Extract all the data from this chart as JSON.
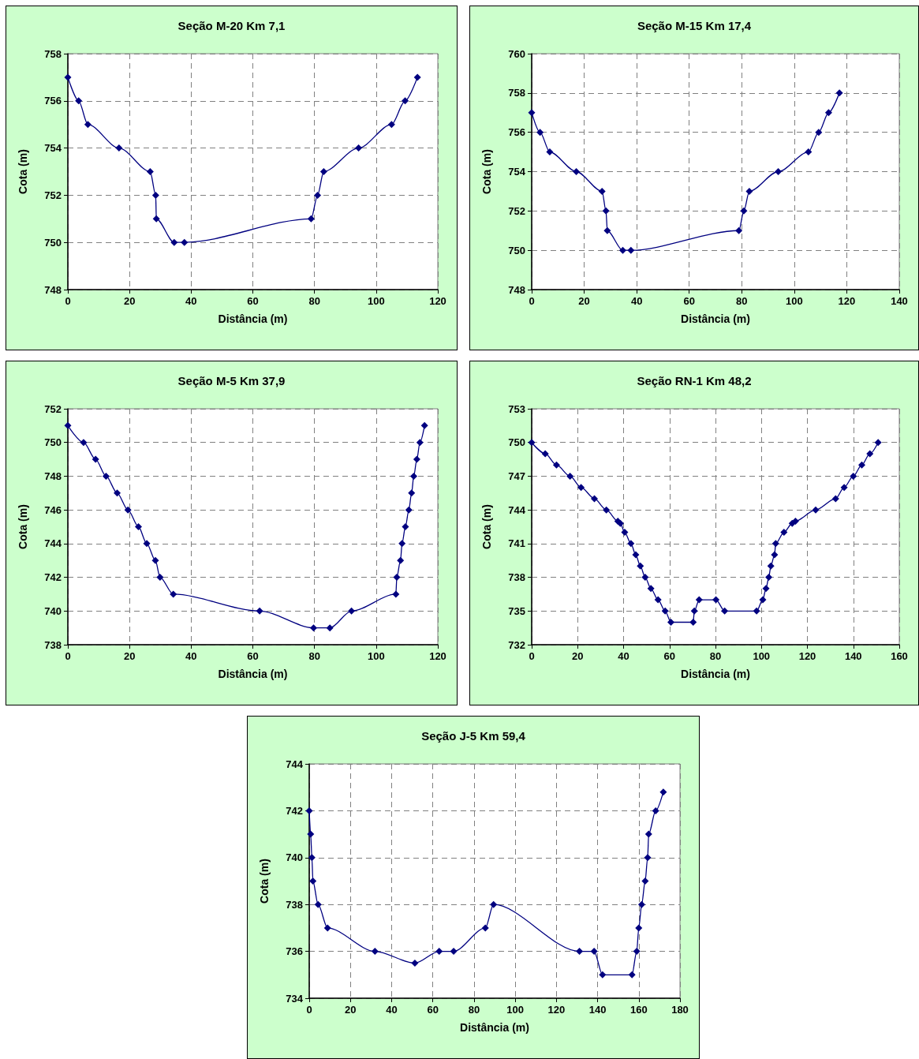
{
  "chart_data": [
    {
      "type": "line",
      "title": "Seção M-20 Km 7,1",
      "xlabel": "Distância (m)",
      "ylabel": "Cota (m)",
      "xlim": [
        0,
        120
      ],
      "xticks": [
        0,
        20,
        40,
        60,
        80,
        100,
        120
      ],
      "ylim": [
        748,
        758
      ],
      "yticks": [
        748,
        750,
        752,
        754,
        756,
        758
      ],
      "grid": true,
      "marker": "diamond",
      "line_style": "solid",
      "series": [
        {
          "color": "#000080",
          "x": [
            0,
            3.5,
            6.5,
            16.6,
            26.7,
            28.5,
            28.7,
            34.5,
            37.8,
            78.9,
            81,
            83,
            94.3,
            105,
            109.4,
            113.4
          ],
          "values": [
            757,
            756,
            755,
            754,
            753,
            752,
            751,
            750,
            750,
            751,
            752,
            753,
            754,
            755,
            756,
            757
          ]
        }
      ]
    },
    {
      "type": "line",
      "title": "Seção M-15 Km 17,4",
      "xlabel": "Distância (m)",
      "ylabel": "Cota (m)",
      "xlim": [
        0,
        140
      ],
      "xticks": [
        0,
        20,
        40,
        60,
        80,
        100,
        120,
        140
      ],
      "ylim": [
        748,
        760
      ],
      "yticks": [
        748,
        750,
        752,
        754,
        756,
        758,
        760
      ],
      "grid": true,
      "marker": "diamond",
      "line_style": "solid",
      "series": [
        {
          "color": "#000080",
          "x": [
            0,
            3.2,
            6.9,
            17,
            26.8,
            28.3,
            28.8,
            34.7,
            37.8,
            78.9,
            80.8,
            82.9,
            93.9,
            105.4,
            109.3,
            113.1,
            117.2
          ],
          "values": [
            757,
            756,
            755,
            754,
            753,
            752,
            751,
            750,
            750,
            751,
            752,
            753,
            754,
            755,
            756,
            757,
            758
          ]
        }
      ]
    },
    {
      "type": "line",
      "title": "Seção M-5 Km 37,9",
      "xlabel": "Distância (m)",
      "ylabel": "Cota (m)",
      "xlim": [
        0,
        120
      ],
      "xticks": [
        0,
        20,
        40,
        60,
        80,
        100,
        120
      ],
      "ylim": [
        738,
        752
      ],
      "yticks": [
        738,
        740,
        742,
        744,
        746,
        748,
        750,
        752
      ],
      "grid": true,
      "marker": "diamond",
      "line_style": "solid",
      "series": [
        {
          "color": "#000080",
          "x": [
            0,
            5.1,
            9,
            12.4,
            16,
            19.5,
            22.9,
            25.6,
            28.4,
            29.9,
            34.2,
            62.2,
            79.7,
            85,
            92,
            106.4,
            106.7,
            107.9,
            108.4,
            109.5,
            110.6,
            111.5,
            112.2,
            113.2,
            114.2,
            115.7
          ],
          "values": [
            751,
            750,
            749,
            748,
            747,
            746,
            745,
            744,
            743,
            742,
            741,
            740,
            739,
            739,
            740,
            741,
            742,
            743,
            744,
            745,
            746,
            747,
            748,
            749,
            750,
            751
          ]
        }
      ]
    },
    {
      "type": "line",
      "title": "Seção RN-1 Km 48,2",
      "xlabel": "Distância (m)",
      "ylabel": "Cota (m)",
      "xlim": [
        0,
        160
      ],
      "xticks": [
        0,
        20,
        40,
        60,
        80,
        100,
        120,
        140,
        160
      ],
      "ylim": [
        732,
        753
      ],
      "yticks": [
        732,
        735,
        738,
        741,
        744,
        747,
        750,
        753
      ],
      "grid": true,
      "marker": "diamond",
      "line_style": "solid",
      "series": [
        {
          "color": "#000080",
          "x": [
            0,
            5.9,
            10.8,
            16.7,
            21.5,
            27.3,
            32.5,
            37.5,
            38.6,
            40.5,
            43.2,
            45.3,
            47.3,
            49.4,
            51.9,
            55,
            58.1,
            60.6,
            70.3,
            70.8,
            72.9,
            80.2,
            84,
            97.9,
            100.6,
            102,
            103.2,
            104.1,
            105.7,
            106.2,
            109.8,
            113.4,
            114.8,
            123.6,
            132.3,
            136,
            140,
            143.7,
            147.2,
            150.8
          ],
          "values": [
            750,
            749,
            748,
            747,
            746,
            745,
            744,
            743,
            742.8,
            742,
            741,
            740,
            739,
            738,
            737,
            736,
            735,
            734,
            734,
            735,
            736,
            736,
            735,
            735,
            736,
            737,
            738,
            739,
            740,
            741,
            742,
            742.8,
            743,
            744,
            745,
            746,
            747,
            748,
            749,
            750
          ]
        }
      ]
    },
    {
      "type": "line",
      "title": "Seção J-5 Km 59,4",
      "xlabel": "Distância (m)",
      "ylabel": "Cota (m)",
      "xlim": [
        0,
        180
      ],
      "xticks": [
        0,
        20,
        40,
        60,
        80,
        100,
        120,
        140,
        160,
        180
      ],
      "ylim": [
        734,
        744
      ],
      "yticks": [
        734,
        736,
        738,
        740,
        742,
        744
      ],
      "grid": true,
      "marker": "diamond",
      "line_style": "solid",
      "series": [
        {
          "color": "#000080",
          "x": [
            0,
            0.7,
            1.3,
            1.8,
            4.3,
            8.9,
            31.9,
            51.3,
            63.1,
            70.1,
            85.5,
            89.5,
            131.2,
            138.3,
            142.4,
            156.7,
            159,
            160,
            161.4,
            163.1,
            164.3,
            164.8,
            168.2,
            171.9
          ],
          "values": [
            742,
            741,
            740,
            739,
            738,
            737,
            736,
            735.5,
            736,
            736,
            737,
            738,
            736,
            736,
            735,
            735,
            736,
            737,
            738,
            739,
            740,
            741,
            742,
            742.8
          ]
        }
      ]
    }
  ]
}
